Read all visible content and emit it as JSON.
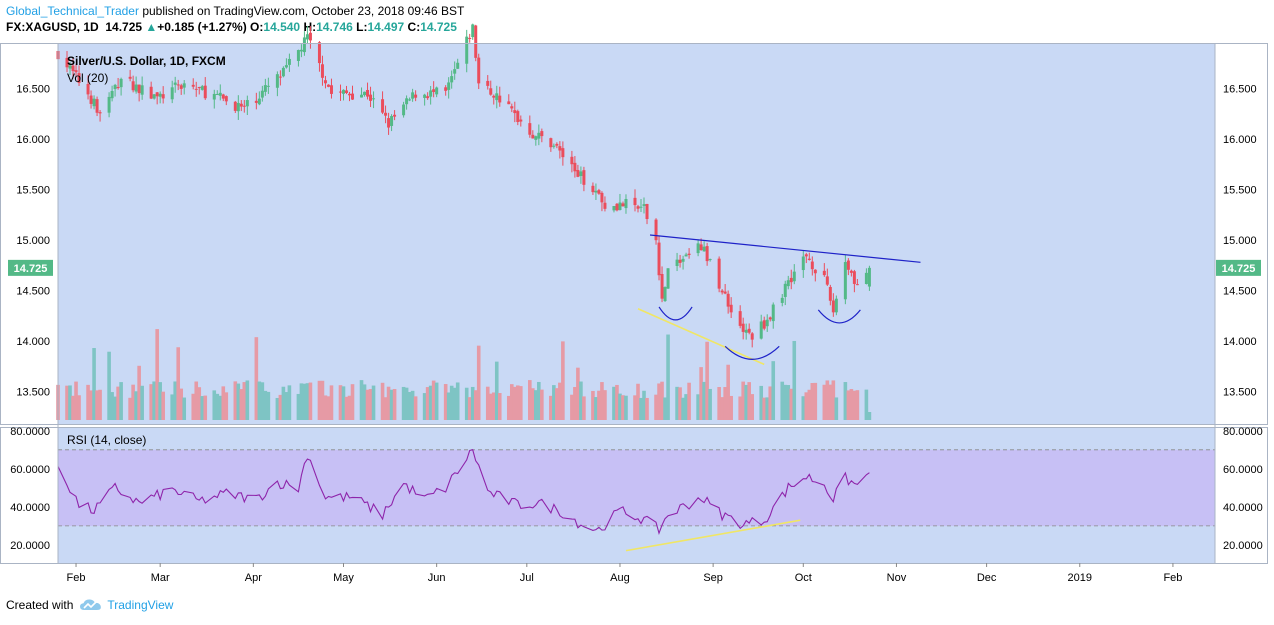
{
  "header": {
    "author": "Global_Technical_Trader",
    "published": "published on TradingView.com, October 23, 2018 09:46 BST",
    "symbol": "FX:XAGUSD, 1D",
    "last": "14.725",
    "change_arrow": "▲",
    "change": "+0.185 (+1.27%)",
    "open_label": "O:",
    "open": "14.540",
    "high_label": "H:",
    "high": "14.746",
    "low_label": "L:",
    "low": "14.497",
    "close_label": "C:",
    "close": "14.725"
  },
  "footer": {
    "created_with": "Created with",
    "brand": "TradingView",
    "logo_icon": "tradingview-cloud-icon"
  },
  "colors": {
    "pane_bg": "#c9d9f5",
    "up": "#53b987",
    "down": "#eb4d5c",
    "vol_up": "#7ec4c4",
    "vol_down": "#e69aa5",
    "rsi_line": "#8e24aa",
    "rsi_band": "#c7c0f5",
    "trendline": "#1e22c8",
    "support": "#f0e665",
    "price_tag": "#53b987"
  },
  "chart_data": [
    {
      "type": "candlestick",
      "title": "Silver/U.S. Dollar, 1D, FXCM",
      "volume_label": "Vol (20)",
      "price_axis_labels": [
        "16.500",
        "16.000",
        "15.500",
        "15.000",
        "14.500",
        "14.000",
        "13.500"
      ],
      "ylim": [
        13.18,
        16.95
      ],
      "x_labels": [
        "Feb",
        "Mar",
        "Apr",
        "May",
        "Jun",
        "Jul",
        "Aug",
        "Sep",
        "Oct",
        "Nov",
        "Dec",
        "2019",
        "Feb"
      ],
      "last_price_tag": "14.725",
      "closes_anchors": [
        {
          "date": "2018-01-26",
          "value": 16.85
        },
        {
          "date": "2018-02-05",
          "value": 16.45
        },
        {
          "date": "2018-02-09",
          "value": 16.25
        },
        {
          "date": "2018-02-16",
          "value": 16.6
        },
        {
          "date": "2018-02-28",
          "value": 16.4
        },
        {
          "date": "2018-03-09",
          "value": 16.55
        },
        {
          "date": "2018-03-21",
          "value": 16.4
        },
        {
          "date": "2018-03-29",
          "value": 16.3
        },
        {
          "date": "2018-04-11",
          "value": 16.65
        },
        {
          "date": "2018-04-19",
          "value": 17.0
        },
        {
          "date": "2018-04-27",
          "value": 16.45
        },
        {
          "date": "2018-05-09",
          "value": 16.45
        },
        {
          "date": "2018-05-16",
          "value": 16.15
        },
        {
          "date": "2018-05-25",
          "value": 16.45
        },
        {
          "date": "2018-06-04",
          "value": 16.45
        },
        {
          "date": "2018-06-13",
          "value": 17.1
        },
        {
          "date": "2018-06-15",
          "value": 16.55
        },
        {
          "date": "2018-06-22",
          "value": 16.4
        },
        {
          "date": "2018-07-03",
          "value": 16.05
        },
        {
          "date": "2018-07-10",
          "value": 15.95
        },
        {
          "date": "2018-07-18",
          "value": 15.65
        },
        {
          "date": "2018-07-24",
          "value": 15.5
        },
        {
          "date": "2018-07-27",
          "value": 15.35
        },
        {
          "date": "2018-08-03",
          "value": 15.35
        },
        {
          "date": "2018-08-09",
          "value": 15.3
        },
        {
          "date": "2018-08-13",
          "value": 15.0
        },
        {
          "date": "2018-08-15",
          "value": 14.4
        },
        {
          "date": "2018-08-17",
          "value": 14.7
        },
        {
          "date": "2018-08-28",
          "value": 14.95
        },
        {
          "date": "2018-09-04",
          "value": 14.5
        },
        {
          "date": "2018-09-11",
          "value": 14.1
        },
        {
          "date": "2018-09-14",
          "value": 14.05
        },
        {
          "date": "2018-09-20",
          "value": 14.25
        },
        {
          "date": "2018-09-26",
          "value": 14.6
        },
        {
          "date": "2018-10-02",
          "value": 14.85
        },
        {
          "date": "2018-10-08",
          "value": 14.6
        },
        {
          "date": "2018-10-11",
          "value": 14.3
        },
        {
          "date": "2018-10-15",
          "value": 14.8
        },
        {
          "date": "2018-10-19",
          "value": 14.55
        },
        {
          "date": "2018-10-23",
          "value": 14.725
        }
      ],
      "annotations": {
        "resistance_line": [
          {
            "date": "2018-08-11",
            "value": 15.05
          },
          {
            "date": "2018-11-09",
            "value": 14.78
          }
        ],
        "support_line": [
          {
            "date": "2018-08-07",
            "value": 14.32
          },
          {
            "date": "2018-09-18",
            "value": 13.77
          }
        ],
        "arc_left_shoulder": {
          "from": "2018-08-14",
          "to": "2018-08-25",
          "value": 14.22
        },
        "arc_head": {
          "from": "2018-09-05",
          "to": "2018-09-23",
          "value": 13.83
        },
        "arc_right_shoulder": {
          "from": "2018-10-06",
          "to": "2018-10-20",
          "value": 14.19
        }
      }
    },
    {
      "type": "line",
      "title": "RSI (14, close)",
      "axis_labels": [
        "80.0000",
        "60.0000",
        "40.0000",
        "20.0000"
      ],
      "ylim": [
        10.5,
        82
      ],
      "band": [
        30,
        70
      ],
      "anchors": [
        {
          "date": "2018-01-26",
          "value": 62
        },
        {
          "date": "2018-02-02",
          "value": 41
        },
        {
          "date": "2018-02-07",
          "value": 38
        },
        {
          "date": "2018-02-14",
          "value": 50
        },
        {
          "date": "2018-02-22",
          "value": 42
        },
        {
          "date": "2018-03-05",
          "value": 49
        },
        {
          "date": "2018-03-14",
          "value": 43
        },
        {
          "date": "2018-03-23",
          "value": 47
        },
        {
          "date": "2018-04-02",
          "value": 44
        },
        {
          "date": "2018-04-09",
          "value": 53
        },
        {
          "date": "2018-04-16",
          "value": 50
        },
        {
          "date": "2018-04-19",
          "value": 68
        },
        {
          "date": "2018-04-25",
          "value": 45
        },
        {
          "date": "2018-05-04",
          "value": 45
        },
        {
          "date": "2018-05-14",
          "value": 36
        },
        {
          "date": "2018-05-21",
          "value": 52
        },
        {
          "date": "2018-05-28",
          "value": 44
        },
        {
          "date": "2018-06-04",
          "value": 50
        },
        {
          "date": "2018-06-13",
          "value": 70
        },
        {
          "date": "2018-06-18",
          "value": 48
        },
        {
          "date": "2018-06-28",
          "value": 41
        },
        {
          "date": "2018-07-05",
          "value": 42
        },
        {
          "date": "2018-07-12",
          "value": 38
        },
        {
          "date": "2018-07-20",
          "value": 30
        },
        {
          "date": "2018-07-25",
          "value": 28
        },
        {
          "date": "2018-08-01",
          "value": 38
        },
        {
          "date": "2018-08-08",
          "value": 34
        },
        {
          "date": "2018-08-14",
          "value": 28
        },
        {
          "date": "2018-08-17",
          "value": 36
        },
        {
          "date": "2018-08-28",
          "value": 45
        },
        {
          "date": "2018-09-04",
          "value": 36
        },
        {
          "date": "2018-09-11",
          "value": 31
        },
        {
          "date": "2018-09-18",
          "value": 33
        },
        {
          "date": "2018-09-26",
          "value": 50
        },
        {
          "date": "2018-10-02",
          "value": 56
        },
        {
          "date": "2018-10-08",
          "value": 52
        },
        {
          "date": "2018-10-11",
          "value": 44
        },
        {
          "date": "2018-10-15",
          "value": 55
        },
        {
          "date": "2018-10-19",
          "value": 51
        },
        {
          "date": "2018-10-23",
          "value": 58
        }
      ],
      "divergence_line": [
        {
          "date": "2018-08-03",
          "value": 17
        },
        {
          "date": "2018-09-30",
          "value": 33
        }
      ]
    }
  ]
}
